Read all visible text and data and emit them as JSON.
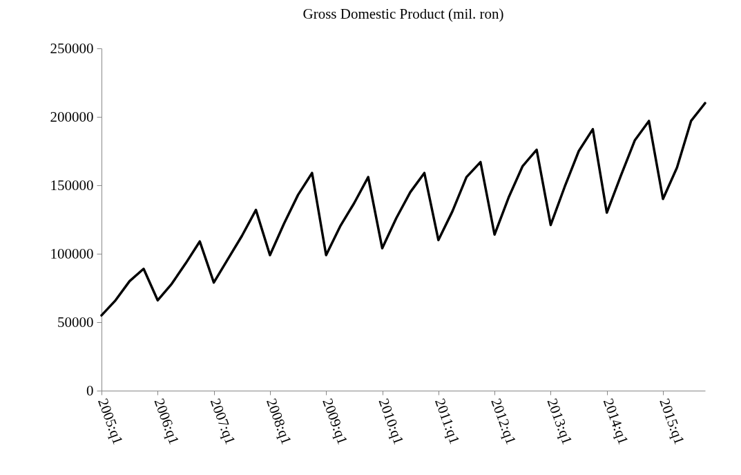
{
  "chart_data": {
    "type": "line",
    "title": "Gross Domestic Product (mil. ron)",
    "categories": [
      "2005:q1",
      null,
      null,
      null,
      "2006:q1",
      null,
      null,
      null,
      "2007:q1",
      null,
      null,
      null,
      "2008:q1",
      null,
      null,
      null,
      "2009:q1",
      null,
      null,
      null,
      "2010:q1",
      null,
      null,
      null,
      "2011:q1",
      null,
      null,
      null,
      "2012:q1",
      null,
      null,
      null,
      "2013:q1",
      null,
      null,
      null,
      "2014:q1",
      null,
      null,
      null,
      "2015:q1",
      null,
      null,
      null
    ],
    "series": [
      {
        "color": "#000000",
        "values": [
          55000,
          66000,
          80000,
          89000,
          66000,
          78000,
          93000,
          109000,
          79000,
          96000,
          113000,
          132000,
          99000,
          122000,
          143000,
          159000,
          99000,
          120000,
          137000,
          156000,
          104000,
          126000,
          145000,
          159000,
          110000,
          131000,
          156000,
          167000,
          114000,
          141000,
          164000,
          176000,
          121000,
          149000,
          175000,
          191000,
          130000,
          157000,
          183000,
          197000,
          140000,
          163000,
          197000,
          210000
        ]
      }
    ],
    "ylim": [
      0,
      250000
    ],
    "yticks": [
      0,
      50000,
      100000,
      150000,
      200000,
      250000
    ],
    "grid": false,
    "marker": "none",
    "line_style": "solid"
  }
}
